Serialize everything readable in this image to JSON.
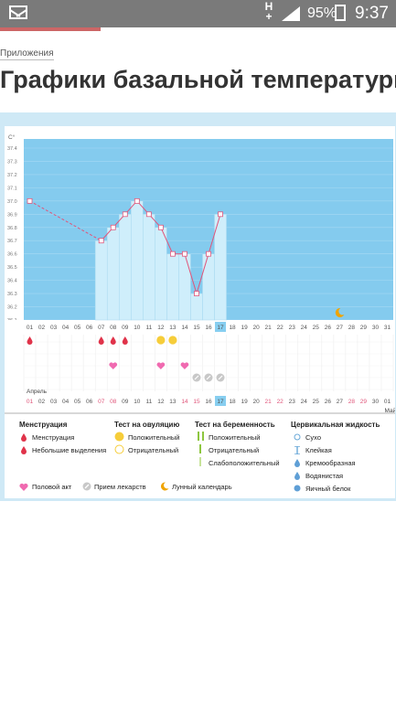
{
  "status_bar": {
    "network": "H",
    "network_sub": "+",
    "battery": "95%",
    "time": "9:37",
    "icons": [
      "mail-icon",
      "signal-icon",
      "battery-charging-icon"
    ]
  },
  "breadcrumb": "Приложения",
  "page_title": "Графики базальной температуры",
  "chart": {
    "unit_label": "C°",
    "month_label": "Апрель",
    "next_month_label": "Май",
    "colors": {
      "plot_bg": "#84cbee",
      "bar": "#cfeefb",
      "line": "#e0557a",
      "accent": "#f0a400",
      "today": "#87cef0",
      "pink_day": "#e0557a"
    },
    "icons": {
      "menstruation": "drop-icon",
      "ovulation": "circle-icon",
      "intercourse": "heart-icon",
      "medicine": "pill-icon",
      "moon": "moon-icon"
    }
  },
  "chart_data": {
    "type": "bar+line",
    "ylabel": "C°",
    "y_ticks": [
      "37.4",
      "37.3",
      "37.2",
      "37.1",
      "37.0",
      "36.9",
      "36.8",
      "36.7",
      "36.6",
      "36.5",
      "36.4",
      "36.3",
      "36.2",
      "36.1"
    ],
    "ylim": [
      36.1,
      37.4
    ],
    "x_days": [
      "01",
      "02",
      "03",
      "04",
      "05",
      "06",
      "07",
      "08",
      "09",
      "10",
      "11",
      "12",
      "13",
      "14",
      "15",
      "16",
      "17",
      "18",
      "19",
      "20",
      "21",
      "22",
      "23",
      "24",
      "25",
      "26",
      "27",
      "28",
      "29",
      "30",
      "31"
    ],
    "temperatures": [
      {
        "day": 1,
        "value": 37.0
      },
      {
        "day": 7,
        "value": 36.7
      },
      {
        "day": 8,
        "value": 36.8
      },
      {
        "day": 9,
        "value": 36.9
      },
      {
        "day": 10,
        "value": 37.0
      },
      {
        "day": 11,
        "value": 36.9
      },
      {
        "day": 12,
        "value": 36.8
      },
      {
        "day": 13,
        "value": 36.6
      },
      {
        "day": 14,
        "value": 36.6
      },
      {
        "day": 15,
        "value": 36.3
      },
      {
        "day": 16,
        "value": 36.6
      },
      {
        "day": 17,
        "value": 36.9
      }
    ],
    "dashed_segment": [
      1,
      7
    ],
    "today": 17,
    "moon_day": 27,
    "menstruation_days": [
      1,
      7,
      8,
      9
    ],
    "ovulation_positive_days": [
      12,
      13
    ],
    "intercourse_days": [
      8,
      12,
      14
    ],
    "medicine_days": [
      15,
      16,
      17
    ],
    "bottom_days": [
      "01",
      "02",
      "03",
      "04",
      "05",
      "06",
      "07",
      "08",
      "09",
      "10",
      "11",
      "12",
      "13",
      "14",
      "15",
      "16",
      "17",
      "18",
      "19",
      "20",
      "21",
      "22",
      "23",
      "24",
      "25",
      "26",
      "27",
      "28",
      "29",
      "30",
      "01"
    ],
    "bottom_pink_days": [
      1,
      7,
      8,
      14,
      15,
      21,
      22,
      28,
      29
    ]
  },
  "legend": {
    "menstruation": {
      "title": "Менструация",
      "items": [
        "Менструация",
        "Небольшие выделения"
      ]
    },
    "ovulation": {
      "title": "Тест на овуляцию",
      "items": [
        "Положительный",
        "Отрицательный"
      ]
    },
    "pregnancy": {
      "title": "Тест на беременность",
      "items": [
        "Положительный",
        "Отрицательный",
        "Слабоположительный"
      ]
    },
    "cervical": {
      "title": "Цервикальная жидкость",
      "items": [
        "Сухо",
        "Клейкая",
        "Кремообразная",
        "Водянистая",
        "Яичный белок"
      ]
    },
    "bottom": [
      "Половой акт",
      "Прием лекарств",
      "Лунный календарь"
    ]
  }
}
